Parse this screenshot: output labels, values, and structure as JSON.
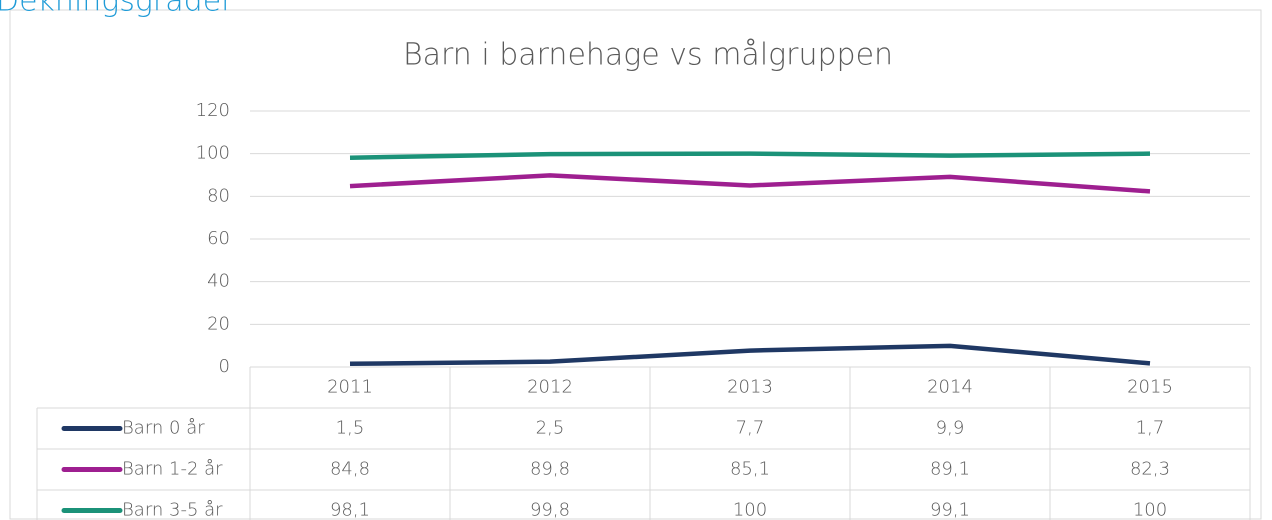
{
  "heading": "Dekningsgrader",
  "chart_data": {
    "type": "line",
    "title": "Barn i barnehage vs målgruppen",
    "categories": [
      "2011",
      "2012",
      "2013",
      "2014",
      "2015"
    ],
    "series": [
      {
        "name": "Barn 0 år",
        "color": "#1f3864",
        "values": [
          1.5,
          2.5,
          7.7,
          9.9,
          1.7
        ],
        "value_labels": [
          "1,5",
          "2,5",
          "7,7",
          "9,9",
          "1,7"
        ]
      },
      {
        "name": "Barn 1-2 år",
        "color": "#9e1f90",
        "values": [
          84.8,
          89.8,
          85.1,
          89.1,
          82.3
        ],
        "value_labels": [
          "84,8",
          "89,8",
          "85,1",
          "89,1",
          "82,3"
        ]
      },
      {
        "name": "Barn 3-5 år",
        "color": "#1b9278",
        "values": [
          98.1,
          99.8,
          100,
          99.1,
          100
        ],
        "value_labels": [
          "98,1",
          "99,8",
          "100",
          "99,1",
          "100"
        ]
      }
    ],
    "ylim": [
      0,
      120
    ],
    "yticks": [
      0,
      20,
      40,
      60,
      80,
      100,
      120
    ],
    "grid": true
  }
}
